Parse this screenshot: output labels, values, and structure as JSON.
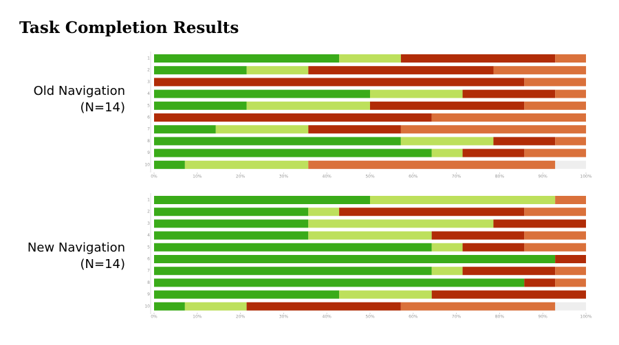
{
  "title": "Task Completion Results",
  "chart_data": [
    {
      "type": "bar",
      "orientation": "horizontal",
      "stacked": true,
      "title": "Old Navigation",
      "subtitle": "(N=14)",
      "categories": [
        "1",
        "2",
        "3",
        "4",
        "5",
        "6",
        "7",
        "8",
        "9",
        "10"
      ],
      "series": [
        {
          "color": "#3aab19",
          "values": [
            42.86,
            21.43,
            0,
            50,
            21.43,
            0,
            14.29,
            57.14,
            64.29,
            7.14
          ]
        },
        {
          "color": "#bde05c",
          "values": [
            14.29,
            14.29,
            0,
            21.43,
            28.57,
            0,
            21.43,
            21.43,
            7.14,
            28.57
          ]
        },
        {
          "color": "#b12c07",
          "values": [
            35.71,
            42.86,
            85.71,
            21.43,
            35.71,
            64.29,
            21.43,
            14.29,
            14.29,
            0
          ]
        },
        {
          "color": "#da713b",
          "values": [
            7.14,
            21.43,
            14.29,
            7.14,
            14.29,
            35.71,
            42.86,
            7.14,
            14.29,
            57.14
          ]
        }
      ],
      "xlim": [
        0,
        100
      ],
      "xticks": [
        {
          "value": 0,
          "label": "0%"
        },
        {
          "value": 10,
          "label": "10%"
        },
        {
          "value": 20,
          "label": "20%"
        },
        {
          "value": 30,
          "label": "30%"
        },
        {
          "value": 40,
          "label": "40%"
        },
        {
          "value": 50,
          "label": "50%"
        },
        {
          "value": 60,
          "label": "60%"
        },
        {
          "value": 70,
          "label": "70%"
        },
        {
          "value": 80,
          "label": "80%"
        },
        {
          "value": 90,
          "label": "90%"
        },
        {
          "value": 100,
          "label": "100%"
        }
      ]
    },
    {
      "type": "bar",
      "orientation": "horizontal",
      "stacked": true,
      "title": "New Navigation",
      "subtitle": "(N=14)",
      "categories": [
        "1",
        "2",
        "3",
        "4",
        "5",
        "6",
        "7",
        "8",
        "9",
        "10"
      ],
      "series": [
        {
          "color": "#3aab19",
          "values": [
            50,
            35.71,
            35.71,
            35.71,
            64.29,
            92.86,
            64.29,
            85.71,
            42.86,
            7.14
          ]
        },
        {
          "color": "#bde05c",
          "values": [
            42.86,
            7.14,
            42.86,
            28.57,
            7.14,
            0,
            7.14,
            0,
            21.43,
            14.29
          ]
        },
        {
          "color": "#b12c07",
          "values": [
            0,
            42.86,
            21.43,
            21.43,
            14.29,
            7.14,
            21.43,
            7.14,
            35.71,
            35.71
          ]
        },
        {
          "color": "#da713b",
          "values": [
            7.14,
            14.29,
            0,
            14.29,
            14.29,
            0,
            7.14,
            7.14,
            0,
            35.71
          ]
        }
      ],
      "xlim": [
        0,
        100
      ],
      "xticks": [
        {
          "value": 0,
          "label": "0%"
        },
        {
          "value": 10,
          "label": "10%"
        },
        {
          "value": 20,
          "label": "20%"
        },
        {
          "value": 30,
          "label": "30%"
        },
        {
          "value": 40,
          "label": "40%"
        },
        {
          "value": 50,
          "label": "50%"
        },
        {
          "value": 60,
          "label": "60%"
        },
        {
          "value": 70,
          "label": "70%"
        },
        {
          "value": 80,
          "label": "80%"
        },
        {
          "value": 90,
          "label": "90%"
        },
        {
          "value": 100,
          "label": "100%"
        }
      ]
    }
  ]
}
